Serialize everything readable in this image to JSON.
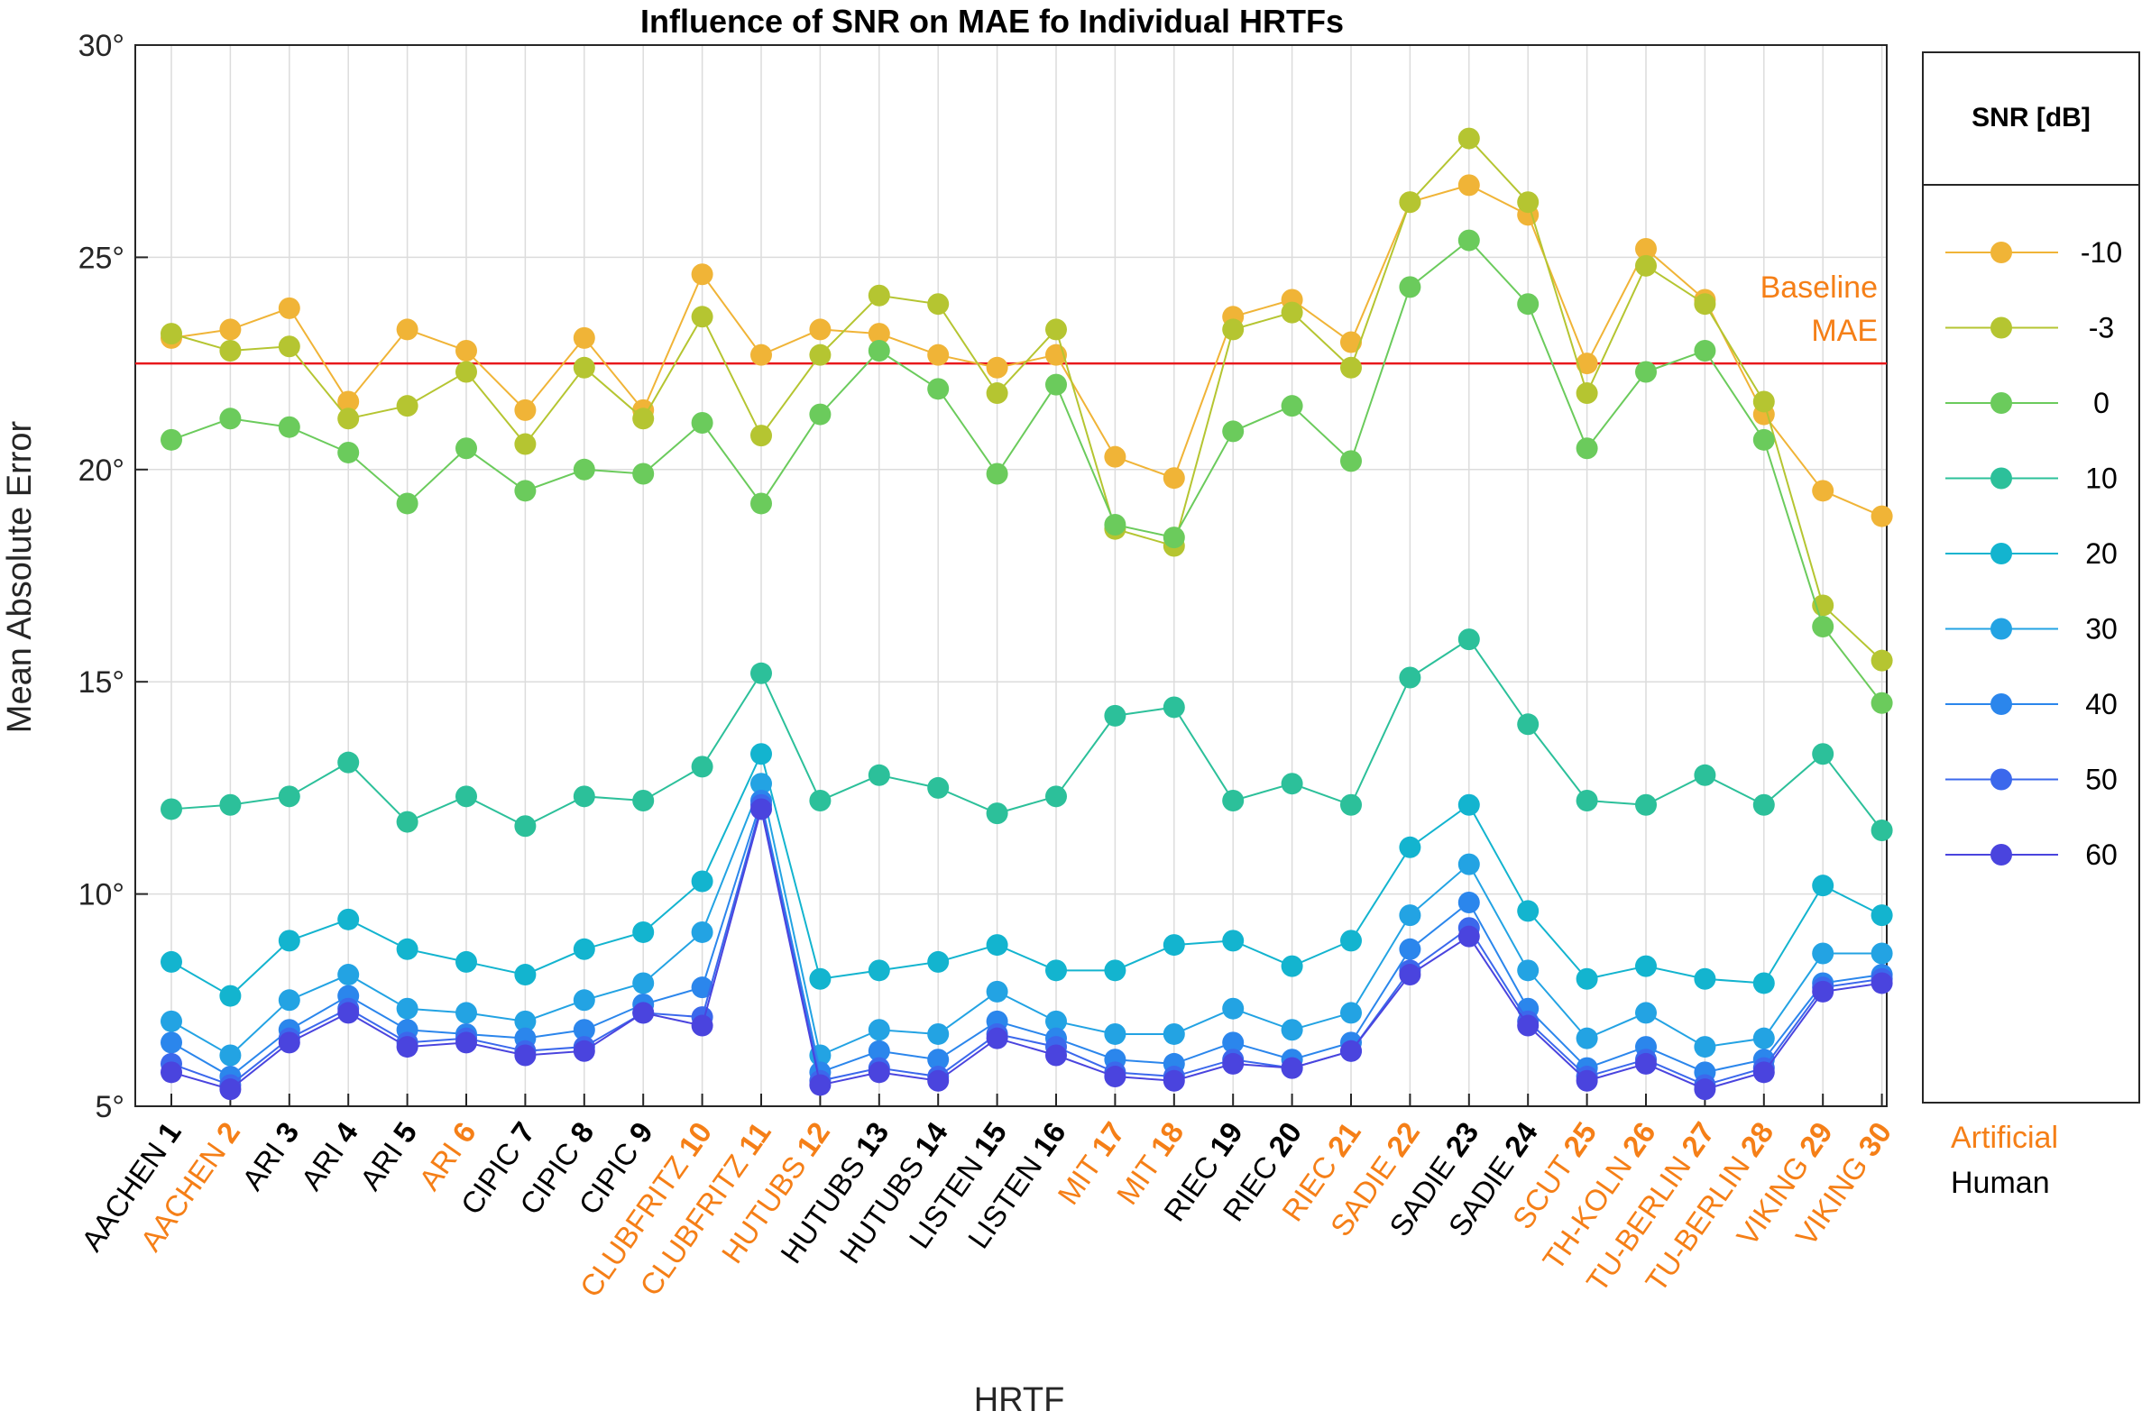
{
  "chart_data": {
    "type": "line",
    "title": "Influence of SNR on MAE fo Individual HRTFs",
    "xlabel": "HRTF",
    "ylabel": "Mean Absolute Error",
    "ylim": [
      5,
      30
    ],
    "yticks": [
      "5°",
      "10°",
      "15°",
      "20°",
      "25°",
      "30°"
    ],
    "grid": true,
    "categories": [
      {
        "name": "AACHEN",
        "num": "1",
        "group": "Human"
      },
      {
        "name": "AACHEN",
        "num": "2",
        "group": "Artificial"
      },
      {
        "name": "ARI",
        "num": "3",
        "group": "Human"
      },
      {
        "name": "ARI",
        "num": "4",
        "group": "Human"
      },
      {
        "name": "ARI",
        "num": "5",
        "group": "Human"
      },
      {
        "name": "ARI",
        "num": "6",
        "group": "Artificial"
      },
      {
        "name": "CIPIC",
        "num": "7",
        "group": "Human"
      },
      {
        "name": "CIPIC",
        "num": "8",
        "group": "Human"
      },
      {
        "name": "CIPIC",
        "num": "9",
        "group": "Human"
      },
      {
        "name": "CLUBFRITZ",
        "num": "10",
        "group": "Artificial"
      },
      {
        "name": "CLUBFRITZ",
        "num": "11",
        "group": "Artificial"
      },
      {
        "name": "HUTUBS",
        "num": "12",
        "group": "Artificial"
      },
      {
        "name": "HUTUBS",
        "num": "13",
        "group": "Human"
      },
      {
        "name": "HUTUBS",
        "num": "14",
        "group": "Human"
      },
      {
        "name": "LISTEN",
        "num": "15",
        "group": "Human"
      },
      {
        "name": "LISTEN",
        "num": "16",
        "group": "Human"
      },
      {
        "name": "MIT",
        "num": "17",
        "group": "Artificial"
      },
      {
        "name": "MIT",
        "num": "18",
        "group": "Artificial"
      },
      {
        "name": "RIEC",
        "num": "19",
        "group": "Human"
      },
      {
        "name": "RIEC",
        "num": "20",
        "group": "Human"
      },
      {
        "name": "RIEC",
        "num": "21",
        "group": "Artificial"
      },
      {
        "name": "SADIE",
        "num": "22",
        "group": "Artificial"
      },
      {
        "name": "SADIE",
        "num": "23",
        "group": "Human"
      },
      {
        "name": "SADIE",
        "num": "24",
        "group": "Human"
      },
      {
        "name": "SCUT",
        "num": "25",
        "group": "Artificial"
      },
      {
        "name": "TH-KOLN",
        "num": "26",
        "group": "Artificial"
      },
      {
        "name": "TU-BERLIN",
        "num": "27",
        "group": "Artificial"
      },
      {
        "name": "TU-BERLIN",
        "num": "28",
        "group": "Artificial"
      },
      {
        "name": "VIKING",
        "num": "29",
        "group": "Artificial"
      },
      {
        "name": "VIKING",
        "num": "30",
        "group": "Artificial"
      }
    ],
    "baseline": {
      "value": 22.5,
      "label_line1": "Baseline",
      "label_line2": "MAE",
      "color": "#e8191c"
    },
    "legend": {
      "title": "SNR [dB]",
      "placement": "right"
    },
    "group_legend": {
      "artificial": "Artificial",
      "human": "Human",
      "artificial_color": "#f57f17",
      "human_color": "#000000"
    },
    "series": [
      {
        "name": "-10",
        "color": "#f0b437",
        "values": [
          23.1,
          23.3,
          23.8,
          21.6,
          23.3,
          22.8,
          21.4,
          23.1,
          21.4,
          24.6,
          22.7,
          23.3,
          23.2,
          22.7,
          22.4,
          22.7,
          20.3,
          19.8,
          23.6,
          24.0,
          23.0,
          26.3,
          26.7,
          26.0,
          22.5,
          25.2,
          24.0,
          21.3,
          19.5,
          18.9
        ]
      },
      {
        "name": "-3",
        "color": "#b5c531",
        "values": [
          23.2,
          22.8,
          22.9,
          21.2,
          21.5,
          22.3,
          20.6,
          22.4,
          21.2,
          23.6,
          20.8,
          22.7,
          24.1,
          23.9,
          21.8,
          23.3,
          18.6,
          18.2,
          23.3,
          23.7,
          22.4,
          26.3,
          27.8,
          26.3,
          21.8,
          24.8,
          23.9,
          21.6,
          16.8,
          15.5
        ]
      },
      {
        "name": "0",
        "color": "#6bcb5c",
        "values": [
          20.7,
          21.2,
          21.0,
          20.4,
          19.2,
          20.5,
          19.5,
          20.0,
          19.9,
          21.1,
          19.2,
          21.3,
          22.8,
          21.9,
          19.9,
          22.0,
          18.7,
          18.4,
          20.9,
          21.5,
          20.2,
          24.3,
          25.4,
          23.9,
          20.5,
          22.3,
          22.8,
          20.7,
          16.3,
          14.5
        ]
      },
      {
        "name": "10",
        "color": "#2cc09a",
        "values": [
          12.0,
          12.1,
          12.3,
          13.1,
          11.7,
          12.3,
          11.6,
          12.3,
          12.2,
          13.0,
          15.2,
          12.2,
          12.8,
          12.5,
          11.9,
          12.3,
          14.2,
          14.4,
          12.2,
          12.6,
          12.1,
          15.1,
          16.0,
          14.0,
          12.2,
          12.1,
          12.8,
          12.1,
          13.3,
          11.5
        ]
      },
      {
        "name": "20",
        "color": "#13b4cf",
        "values": [
          8.4,
          7.6,
          8.9,
          9.4,
          8.7,
          8.4,
          8.1,
          8.7,
          9.1,
          10.3,
          13.3,
          8.0,
          8.2,
          8.4,
          8.8,
          8.2,
          8.2,
          8.8,
          8.9,
          8.3,
          8.9,
          11.1,
          12.1,
          9.6,
          8.0,
          8.3,
          8.0,
          7.9,
          10.2,
          9.5
        ]
      },
      {
        "name": "30",
        "color": "#23a3e3",
        "values": [
          7.0,
          6.2,
          7.5,
          8.1,
          7.3,
          7.2,
          7.0,
          7.5,
          7.9,
          9.1,
          12.6,
          6.2,
          6.8,
          6.7,
          7.7,
          7.0,
          6.7,
          6.7,
          7.3,
          6.8,
          7.2,
          9.5,
          10.7,
          8.2,
          6.6,
          7.2,
          6.4,
          6.6,
          8.6,
          8.6
        ]
      },
      {
        "name": "40",
        "color": "#2b86ec",
        "values": [
          6.5,
          5.7,
          6.8,
          7.6,
          6.8,
          6.7,
          6.6,
          6.8,
          7.4,
          7.8,
          12.2,
          5.8,
          6.3,
          6.1,
          7.0,
          6.6,
          6.1,
          6.0,
          6.5,
          6.1,
          6.5,
          8.7,
          9.8,
          7.3,
          5.9,
          6.4,
          5.8,
          6.1,
          7.9,
          8.1
        ]
      },
      {
        "name": "50",
        "color": "#3b68ec",
        "values": [
          6.0,
          5.5,
          6.6,
          7.3,
          6.5,
          6.6,
          6.3,
          6.4,
          7.2,
          7.1,
          12.1,
          5.6,
          5.9,
          5.7,
          6.7,
          6.4,
          5.8,
          5.7,
          6.1,
          5.9,
          6.3,
          8.2,
          9.2,
          7.0,
          5.7,
          6.1,
          5.5,
          5.9,
          7.8,
          8.0
        ]
      },
      {
        "name": "60",
        "color": "#4a44de",
        "values": [
          5.8,
          5.4,
          6.5,
          7.2,
          6.4,
          6.5,
          6.2,
          6.3,
          7.2,
          6.9,
          12.0,
          5.5,
          5.8,
          5.6,
          6.6,
          6.2,
          5.7,
          5.6,
          6.0,
          5.9,
          6.3,
          8.1,
          9.0,
          6.9,
          5.6,
          6.0,
          5.4,
          5.8,
          7.7,
          7.9
        ]
      }
    ]
  }
}
